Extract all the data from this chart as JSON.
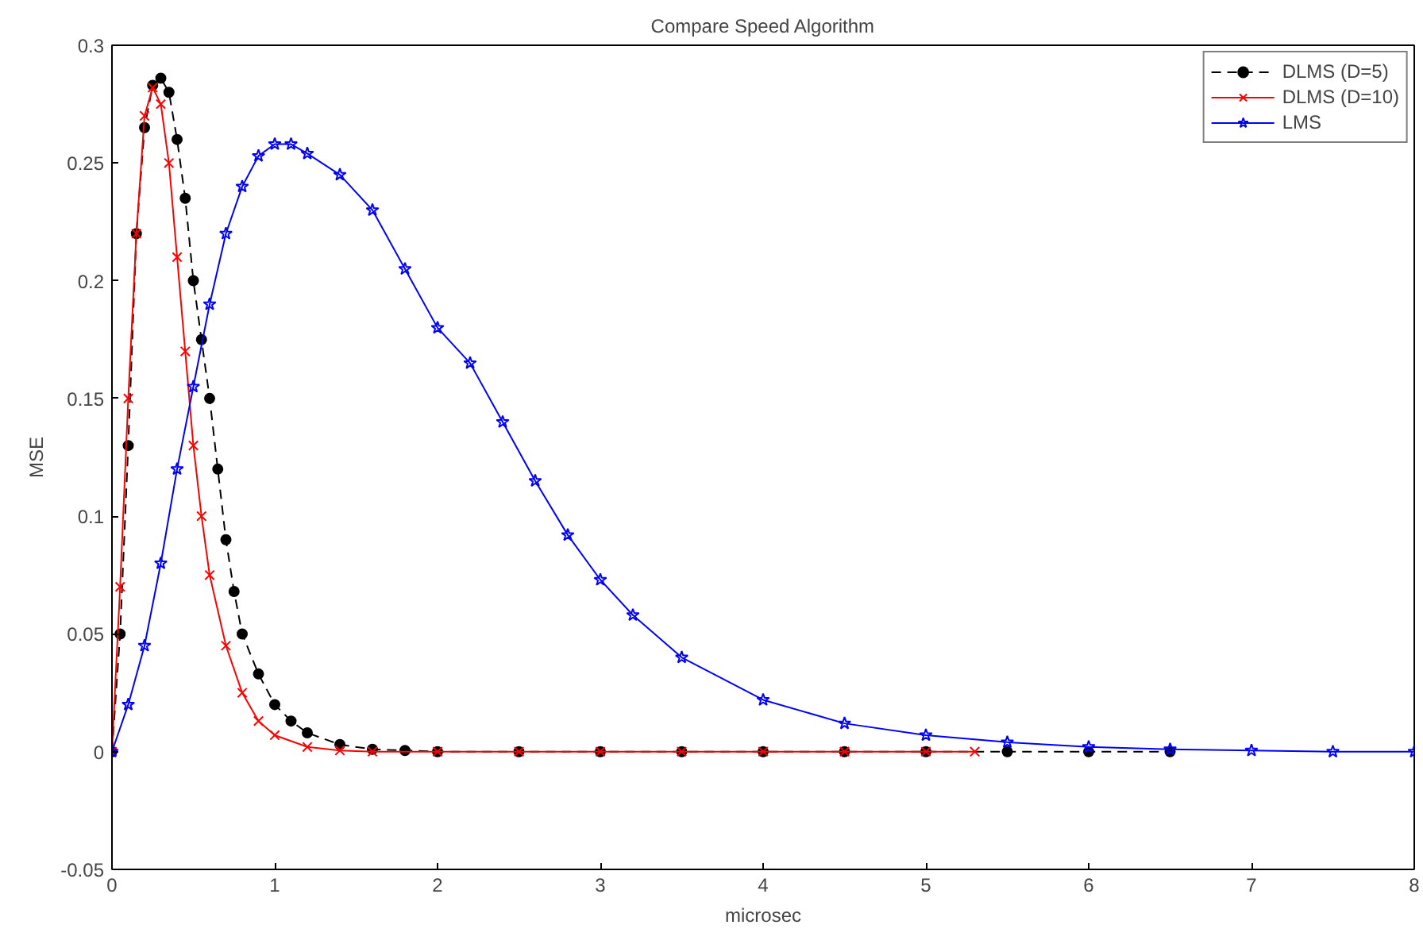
{
  "chart_data": {
    "type": "line",
    "title": "Compare Speed Algorithm",
    "xlabel": "microsec",
    "ylabel": "MSE",
    "xlim": [
      0,
      8
    ],
    "xticks": [
      0,
      1,
      2,
      3,
      4,
      5,
      6,
      7,
      8
    ],
    "ylim": [
      -0.05,
      0.3
    ],
    "yticks": [
      -0.05,
      0,
      0.05,
      0.1,
      0.15,
      0.2,
      0.25,
      0.3
    ],
    "grid": false,
    "legend": "top right",
    "series": [
      {
        "name": "DLMS (D=5)",
        "color": "#000000",
        "marker": "circle",
        "line_style": "dashed",
        "x": [
          0,
          0.05,
          0.1,
          0.15,
          0.2,
          0.25,
          0.3,
          0.35,
          0.4,
          0.45,
          0.5,
          0.55,
          0.6,
          0.65,
          0.7,
          0.75,
          0.8,
          0.9,
          1.0,
          1.1,
          1.2,
          1.4,
          1.6,
          1.8,
          2.0,
          2.5,
          3.0,
          3.5,
          4.0,
          4.5,
          5.0,
          5.5,
          6.0,
          6.5
        ],
        "values": [
          0,
          0.05,
          0.13,
          0.22,
          0.265,
          0.283,
          0.286,
          0.28,
          0.26,
          0.235,
          0.2,
          0.175,
          0.15,
          0.12,
          0.09,
          0.068,
          0.05,
          0.033,
          0.02,
          0.013,
          0.008,
          0.003,
          0.001,
          0.0005,
          0,
          0,
          0,
          0,
          0,
          0,
          0,
          0,
          0,
          0
        ]
      },
      {
        "name": "DLMS (D=10)",
        "color": "#ff0000",
        "marker": "x",
        "line_style": "solid",
        "x": [
          0,
          0.05,
          0.1,
          0.15,
          0.2,
          0.25,
          0.3,
          0.35,
          0.4,
          0.45,
          0.5,
          0.55,
          0.6,
          0.7,
          0.8,
          0.9,
          1.0,
          1.2,
          1.4,
          1.6,
          2.0,
          2.5,
          3.0,
          3.5,
          4.0,
          4.5,
          5.0,
          5.3
        ],
        "values": [
          0,
          0.07,
          0.15,
          0.22,
          0.27,
          0.282,
          0.275,
          0.25,
          0.21,
          0.17,
          0.13,
          0.1,
          0.075,
          0.045,
          0.025,
          0.013,
          0.007,
          0.002,
          0.0005,
          0,
          0,
          0,
          0,
          0,
          0,
          0,
          0,
          0
        ]
      },
      {
        "name": "LMS",
        "color": "#0000ff",
        "marker": "star",
        "line_style": "solid",
        "x": [
          0,
          0.1,
          0.2,
          0.3,
          0.4,
          0.5,
          0.6,
          0.7,
          0.8,
          0.9,
          1.0,
          1.1,
          1.2,
          1.4,
          1.6,
          1.8,
          2.0,
          2.2,
          2.4,
          2.6,
          2.8,
          3.0,
          3.2,
          3.5,
          4.0,
          4.5,
          5.0,
          5.5,
          6.0,
          6.5,
          7.0,
          7.5,
          8.0
        ],
        "values": [
          0,
          0.02,
          0.045,
          0.08,
          0.12,
          0.155,
          0.19,
          0.22,
          0.24,
          0.253,
          0.258,
          0.258,
          0.254,
          0.245,
          0.23,
          0.205,
          0.18,
          0.165,
          0.14,
          0.115,
          0.092,
          0.073,
          0.058,
          0.04,
          0.022,
          0.012,
          0.007,
          0.004,
          0.002,
          0.001,
          0.0005,
          0,
          0
        ]
      }
    ]
  }
}
